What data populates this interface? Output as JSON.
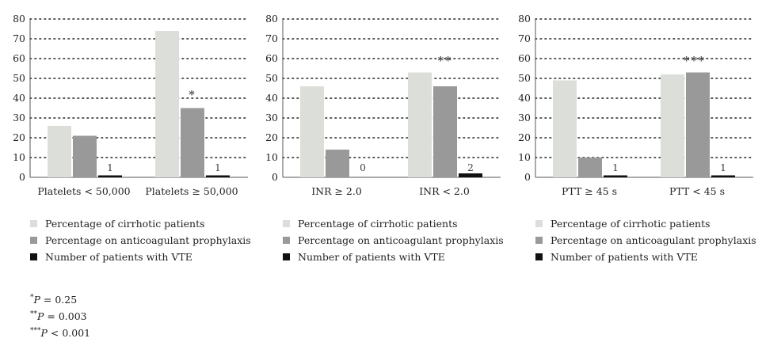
{
  "chart_data": [
    {
      "type": "bar",
      "categories": [
        "Platelets < 50,000",
        "Platelets ≥ 50,000"
      ],
      "series": [
        {
          "name": "Percentage of cirrhotic patients",
          "values": [
            26,
            74
          ]
        },
        {
          "name": "Percentage on anticoagulant prophylaxis",
          "values": [
            21,
            35
          ]
        },
        {
          "name": "Number of patients with VTE",
          "values": [
            1,
            1
          ]
        }
      ],
      "data_labels": [
        "1",
        "1"
      ],
      "significance": [
        "",
        "*"
      ],
      "ylim": [
        0,
        80
      ],
      "yticks": [
        "0",
        "10",
        "20",
        "30",
        "40",
        "50",
        "60",
        "70",
        "80"
      ],
      "grid": true
    },
    {
      "type": "bar",
      "categories": [
        "INR ≥ 2.0",
        "INR < 2.0"
      ],
      "series": [
        {
          "name": "Percentage of cirrhotic patients",
          "values": [
            46,
            53
          ]
        },
        {
          "name": "Percentage on anticoagulant prophylaxis",
          "values": [
            14,
            46
          ]
        },
        {
          "name": "Number of patients with VTE",
          "values": [
            0,
            2
          ]
        }
      ],
      "data_labels": [
        "0",
        "2"
      ],
      "significance": [
        "",
        "**"
      ],
      "ylim": [
        0,
        80
      ],
      "yticks": [
        "0",
        "10",
        "20",
        "30",
        "40",
        "50",
        "60",
        "70",
        "80"
      ],
      "grid": true
    },
    {
      "type": "bar",
      "categories": [
        "PTT ≥ 45 s",
        "PTT < 45 s"
      ],
      "series": [
        {
          "name": "Percentage of cirrhotic patients",
          "values": [
            49,
            52
          ]
        },
        {
          "name": "Percentage on anticoagulant prophylaxis",
          "values": [
            10,
            53
          ]
        },
        {
          "name": "Number of patients with VTE",
          "values": [
            1,
            1
          ]
        }
      ],
      "data_labels": [
        "1",
        "1"
      ],
      "significance": [
        "",
        "***"
      ],
      "ylim": [
        0,
        80
      ],
      "yticks": [
        "0",
        "10",
        "20",
        "30",
        "40",
        "50",
        "60",
        "70",
        "80"
      ],
      "grid": true
    }
  ],
  "colors": {
    "cirrhotic": "#dcdfd9",
    "prophylaxis": "#999999",
    "vte": "#111111",
    "grid": "#222222",
    "axis": "#555555"
  },
  "legend": [
    "Percentage of cirrhotic patients",
    "Percentage on anticoagulant prophylaxis",
    "Number of patients with VTE"
  ],
  "footnotes": [
    {
      "mark": "*",
      "p": "P",
      "text": " = 0.25"
    },
    {
      "mark": "**",
      "p": "P",
      "text": " = 0.003"
    },
    {
      "mark": "***",
      "p": "P",
      "text": " < 0.001"
    }
  ]
}
